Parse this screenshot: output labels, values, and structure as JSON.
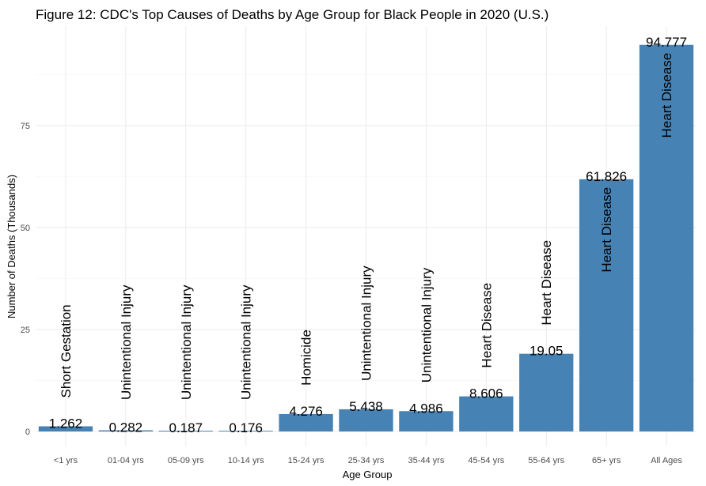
{
  "chart_data": {
    "type": "bar",
    "title": "Figure 12: CDC's Top Causes of Deaths by Age Group for Black People in 2020 (U.S.)",
    "xlabel": "Age Group",
    "ylabel": "Number of Deaths (Thousands)",
    "categories": [
      "<1 yrs",
      "01-04 yrs",
      "05-09 yrs",
      "10-14 yrs",
      "15-24 yrs",
      "25-34 yrs",
      "35-44 yrs",
      "45-54 yrs",
      "55-64 yrs",
      "65+ yrs",
      "All Ages"
    ],
    "values": [
      1.262,
      0.282,
      0.187,
      0.176,
      4.276,
      5.438,
      4.986,
      8.606,
      19.05,
      61.826,
      94.777
    ],
    "value_labels": [
      "1.262",
      "0.282",
      "0.187",
      "0.176",
      "4.276",
      "5.438",
      "4.986",
      "8.606",
      "19.05",
      "61.826",
      "94.777"
    ],
    "causes": [
      "Short Gestation",
      "Unintentional Injury",
      "Unintentional Injury",
      "Unintentional Injury",
      "Homicide",
      "Unintentional Injury",
      "Unintentional Injury",
      "Heart Disease",
      "Heart Disease",
      "Heart Disease",
      "Heart Disease"
    ],
    "yticks": [
      0,
      25,
      50,
      75
    ],
    "ytick_labels": [
      "0",
      "25",
      "50",
      "75"
    ],
    "ylim": [
      -3.5,
      99.5
    ],
    "grid": true,
    "bar_color": "#4682b4"
  }
}
